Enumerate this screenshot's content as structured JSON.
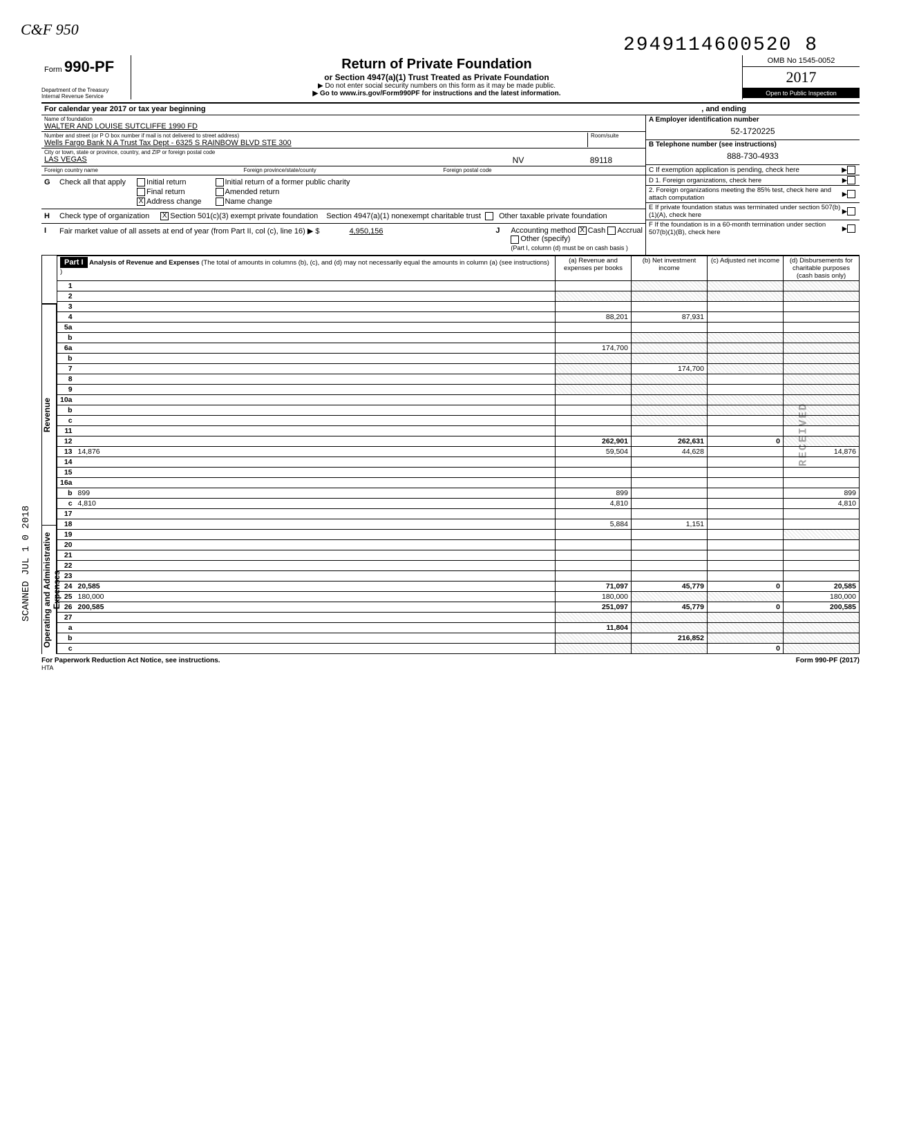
{
  "page": {
    "logo": "C&F 950",
    "dln": "2949114600520 8",
    "form_label": "Form",
    "form_no": "990-PF",
    "title": "Return of Private Foundation",
    "subtitle": "or Section 4947(a)(1) Trust Treated as Private Foundation",
    "note1": "▶ Do not enter social security numbers on this form as it may be made public.",
    "note2": "▶ Go to www.irs.gov/Form990PF for instructions and the latest information.",
    "dept1": "Department of the Treasury",
    "dept2": "Internal Revenue Service",
    "omb": "OMB No 1545-0052",
    "year": "2017",
    "open": "Open to Public Inspection",
    "cal_year": "For calendar year 2017 or tax year beginning",
    "and_ending": ", and ending",
    "footer_left": "For Paperwork Reduction Act Notice, see instructions.",
    "footer_hta": "HTA",
    "footer_right": "Form 990-PF (2017)",
    "stamp": "RECEIVED",
    "scanned": "SCANNED JUL 1 0 2018"
  },
  "id": {
    "name_label": "Name of foundation",
    "name": "WALTER AND LOUISE SUTCLIFFE 1990 FD",
    "addr_label": "Number and street (or P O box number if mail is not delivered to street address)",
    "addr": "Wells Fargo Bank N A  Trust Tax Dept - 6325 S RAINBOW BLVD STE 300",
    "room_label": "Room/suite",
    "city_label": "City or town, state or province, country, and ZIP or foreign postal code",
    "city": "LAS VEGAS",
    "state": "NV",
    "zip": "89118",
    "fc_label": "Foreign country name",
    "fp_label": "Foreign province/state/county",
    "fpc_label": "Foreign postal code",
    "ein_label": "A Employer identification number",
    "ein": "52-1720225",
    "tel_label": "B Telephone number (see instructions)",
    "tel": "888-730-4933",
    "c_label": "C  If exemption application is pending, check here"
  },
  "checks": {
    "g_label": "Check all that apply",
    "g_opts": [
      "Initial return",
      "Final return",
      "Address change",
      "Initial return of a former public charity",
      "Amended return",
      "Name change"
    ],
    "g_checked_idx": 2,
    "h_label": "Check type of organization",
    "h_opt1": "Section 501(c)(3) exempt private foundation",
    "h_opt2": "Section 4947(a)(1) nonexempt charitable trust",
    "h_opt3": "Other taxable private foundation",
    "i_label": "Fair market value of all assets at end of year (from Part II, col (c), line 16) ▶ $",
    "i_val": "4,950,156",
    "j_label": "Accounting method",
    "j_opts": [
      "Cash",
      "Accrual",
      "Other (specify)"
    ],
    "j_note": "(Part I, column (d) must be on cash basis )",
    "d_label": "D 1. Foreign organizations, check here",
    "d2_label": "2. Foreign organizations meeting the 85% test, check here and attach computation",
    "e_label": "E If private foundation status was terminated under section 507(b)(1)(A), check here",
    "f_label": "F If the foundation is in a 60-month termination under section 507(b)(1)(B), check here"
  },
  "part1": {
    "hdr": "Part I",
    "title": "Analysis of Revenue and Expenses",
    "title_note": "(The total of amounts in columns (b), (c), and (d) may not necessarily equal the amounts in column (a) (see instructions) )",
    "col_a": "(a) Revenue and expenses per books",
    "col_b": "(b) Net investment income",
    "col_c": "(c) Adjusted net income",
    "col_d": "(d) Disbursements for charitable purposes (cash basis only)",
    "side_rev": "Revenue",
    "side_exp": "Operating and Administrative Expenses",
    "rows": [
      {
        "n": "1",
        "d": "",
        "a": "",
        "b": "",
        "c": "",
        "shade_bcd": true
      },
      {
        "n": "2",
        "d": "",
        "a": "",
        "b": "",
        "c": "",
        "shade_all": true
      },
      {
        "n": "3",
        "d": "",
        "a": "",
        "b": "",
        "c": ""
      },
      {
        "n": "4",
        "d": "",
        "a": "88,201",
        "b": "87,931",
        "c": ""
      },
      {
        "n": "5a",
        "d": "",
        "a": "",
        "b": "",
        "c": ""
      },
      {
        "n": "b",
        "d": "",
        "a": "",
        "b": "",
        "c": "",
        "shade_bcd": true
      },
      {
        "n": "6a",
        "d": "",
        "a": "174,700",
        "b": "",
        "c": "",
        "shade_bcd": true
      },
      {
        "n": "b",
        "d": "",
        "a": "",
        "b": "",
        "c": "",
        "shade_all": true
      },
      {
        "n": "7",
        "d": "",
        "a": "",
        "b": "174,700",
        "c": "",
        "shade_acd": true
      },
      {
        "n": "8",
        "d": "",
        "a": "",
        "b": "",
        "c": "",
        "shade_abd": true
      },
      {
        "n": "9",
        "d": "",
        "a": "",
        "b": "",
        "c": "",
        "shade_abd": true
      },
      {
        "n": "10a",
        "d": "",
        "a": "",
        "b": "",
        "c": "",
        "shade_bcd": true
      },
      {
        "n": "b",
        "d": "",
        "a": "",
        "b": "",
        "c": "",
        "shade_bcd": true
      },
      {
        "n": "c",
        "d": "",
        "a": "",
        "b": "",
        "c": "",
        "shade_bd": true
      },
      {
        "n": "11",
        "d": "",
        "a": "",
        "b": "",
        "c": ""
      },
      {
        "n": "12",
        "d": "",
        "a": "262,901",
        "b": "262,631",
        "c": "0",
        "bold": true,
        "shade_d": true
      },
      {
        "n": "13",
        "d": "14,876",
        "a": "59,504",
        "b": "44,628",
        "c": ""
      },
      {
        "n": "14",
        "d": "",
        "a": "",
        "b": "",
        "c": ""
      },
      {
        "n": "15",
        "d": "",
        "a": "",
        "b": "",
        "c": ""
      },
      {
        "n": "16a",
        "d": "",
        "a": "",
        "b": "",
        "c": ""
      },
      {
        "n": "b",
        "d": "899",
        "a": "899",
        "b": "",
        "c": ""
      },
      {
        "n": "c",
        "d": "4,810",
        "a": "4,810",
        "b": "",
        "c": ""
      },
      {
        "n": "17",
        "d": "",
        "a": "",
        "b": "",
        "c": ""
      },
      {
        "n": "18",
        "d": "",
        "a": "5,884",
        "b": "1,151",
        "c": ""
      },
      {
        "n": "19",
        "d": "",
        "a": "",
        "b": "",
        "c": "",
        "shade_d": true
      },
      {
        "n": "20",
        "d": "",
        "a": "",
        "b": "",
        "c": ""
      },
      {
        "n": "21",
        "d": "",
        "a": "",
        "b": "",
        "c": ""
      },
      {
        "n": "22",
        "d": "",
        "a": "",
        "b": "",
        "c": ""
      },
      {
        "n": "23",
        "d": "",
        "a": "",
        "b": "",
        "c": ""
      },
      {
        "n": "24",
        "d": "20,585",
        "a": "71,097",
        "b": "45,779",
        "c": "0",
        "bold": true
      },
      {
        "n": "25",
        "d": "180,000",
        "a": "180,000",
        "b": "",
        "c": "",
        "shade_bc": true
      },
      {
        "n": "26",
        "d": "200,585",
        "a": "251,097",
        "b": "45,779",
        "c": "0",
        "bold": true
      },
      {
        "n": "27",
        "d": "",
        "a": "",
        "b": "",
        "c": "",
        "shade_all": true
      },
      {
        "n": "a",
        "d": "",
        "a": "11,804",
        "b": "",
        "c": "",
        "bold": true,
        "shade_bcd": true
      },
      {
        "n": "b",
        "d": "",
        "a": "",
        "b": "216,852",
        "c": "",
        "bold": true,
        "shade_acd": true
      },
      {
        "n": "c",
        "d": "",
        "a": "",
        "b": "",
        "c": "0",
        "bold": true,
        "shade_abd": true
      }
    ]
  },
  "colors": {
    "border": "#000000",
    "bg": "#ffffff",
    "shade": "#e8e8e8"
  }
}
